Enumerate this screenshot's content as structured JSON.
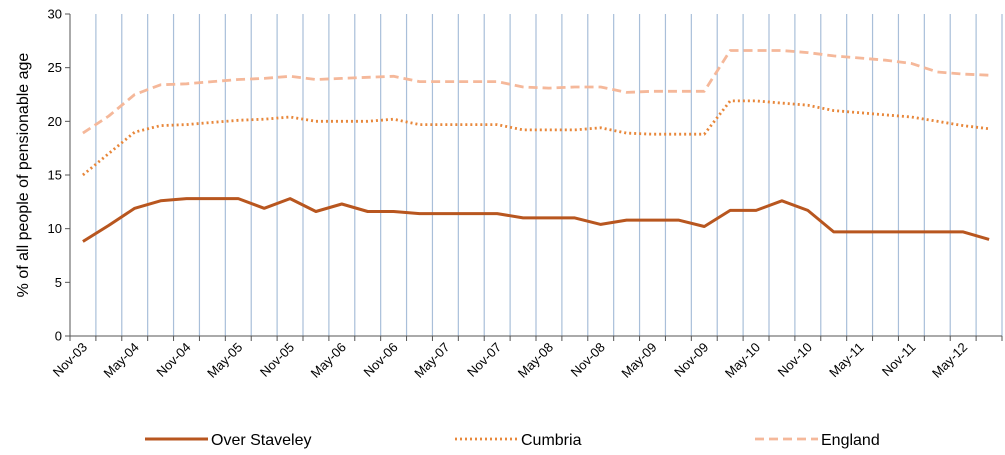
{
  "chart_data": {
    "type": "line",
    "title": "",
    "xlabel": "",
    "ylabel": "% of all people of pensionable age",
    "ylim": [
      0,
      30
    ],
    "yticks": [
      0,
      5,
      10,
      15,
      20,
      25,
      30
    ],
    "grid": "vertical",
    "legend_position": "bottom",
    "x": [
      "Nov-03",
      "Feb-04",
      "May-04",
      "Aug-04",
      "Nov-04",
      "Feb-05",
      "May-05",
      "Aug-05",
      "Nov-05",
      "Feb-06",
      "May-06",
      "Aug-06",
      "Nov-06",
      "Feb-07",
      "May-07",
      "Aug-07",
      "Nov-07",
      "Feb-08",
      "May-08",
      "Aug-08",
      "Nov-08",
      "Feb-09",
      "May-09",
      "Aug-09",
      "Nov-09",
      "Feb-10",
      "May-10",
      "Aug-10",
      "Nov-10",
      "Feb-11",
      "May-11",
      "Aug-11",
      "Nov-11",
      "Feb-12",
      "May-12",
      "Aug-12"
    ],
    "xtick_labels": [
      "Nov-03",
      "May-04",
      "Nov-04",
      "May-05",
      "Nov-05",
      "May-06",
      "Nov-06",
      "May-07",
      "Nov-07",
      "May-08",
      "Nov-08",
      "May-09",
      "Nov-09",
      "May-10",
      "Nov-10",
      "May-11",
      "Nov-11",
      "May-12"
    ],
    "series": [
      {
        "name": "Over Staveley",
        "color": "#b8561f",
        "style": "solid",
        "values": [
          8.8,
          10.3,
          11.9,
          12.6,
          12.8,
          12.8,
          12.8,
          11.9,
          12.8,
          11.6,
          12.3,
          11.6,
          11.6,
          11.4,
          11.4,
          11.4,
          11.4,
          11.0,
          11.0,
          11.0,
          10.4,
          10.8,
          10.8,
          10.8,
          10.2,
          11.7,
          11.7,
          12.6,
          11.7,
          9.7,
          9.7,
          9.7,
          9.7,
          9.7,
          9.7,
          9.0
        ]
      },
      {
        "name": "Cumbria",
        "color": "#e8873a",
        "style": "dotted",
        "values": [
          15.0,
          17.0,
          19.0,
          19.6,
          19.7,
          19.9,
          20.1,
          20.2,
          20.4,
          20.0,
          20.0,
          20.0,
          20.2,
          19.7,
          19.7,
          19.7,
          19.7,
          19.2,
          19.2,
          19.2,
          19.4,
          18.9,
          18.8,
          18.8,
          18.8,
          21.9,
          21.9,
          21.7,
          21.5,
          21.0,
          20.8,
          20.6,
          20.4,
          20.0,
          19.6,
          19.3
        ]
      },
      {
        "name": "England",
        "color": "#f5b89a",
        "style": "dashed",
        "values": [
          18.9,
          20.5,
          22.5,
          23.4,
          23.5,
          23.7,
          23.9,
          24.0,
          24.2,
          23.9,
          24.0,
          24.1,
          24.2,
          23.7,
          23.7,
          23.7,
          23.7,
          23.2,
          23.1,
          23.2,
          23.2,
          22.7,
          22.8,
          22.8,
          22.8,
          26.6,
          26.6,
          26.6,
          26.4,
          26.1,
          25.9,
          25.7,
          25.4,
          24.6,
          24.4,
          24.3
        ]
      }
    ]
  }
}
